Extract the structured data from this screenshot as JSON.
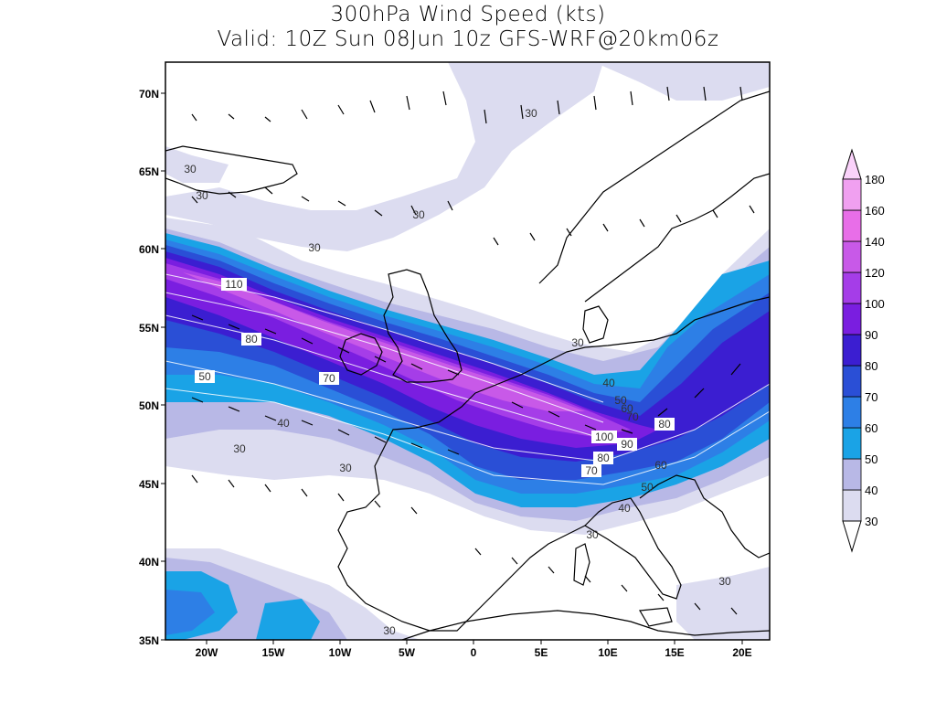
{
  "title": "300hPa Wind Speed (kts)",
  "subtitle": "Valid: 10Z Sun 08Jun 10z GFS-WRF@20km06z",
  "axes": {
    "lat_labels": [
      "70N",
      "65N",
      "60N",
      "55N",
      "50N",
      "45N",
      "40N",
      "35N"
    ],
    "lon_labels": [
      "20W",
      "15W",
      "10W",
      "5W",
      "0",
      "5E",
      "10E",
      "15E",
      "20E"
    ]
  },
  "colorbar": {
    "levels": [
      "30",
      "40",
      "50",
      "60",
      "70",
      "80",
      "90",
      "100",
      "120",
      "140",
      "160",
      "180"
    ],
    "colors": [
      "#dcdcf0",
      "#b8b8e6",
      "#1aa3e6",
      "#2d7fe6",
      "#2a4fd6",
      "#3b1ed1",
      "#7a1ee0",
      "#a53de8",
      "#c859e8",
      "#e86ee8",
      "#f0a0f0",
      "#fad2fa"
    ]
  },
  "contour_labels": [
    "30",
    "30",
    "30",
    "30",
    "30",
    "110",
    "80",
    "50",
    "70",
    "40",
    "30",
    "30",
    "30",
    "40",
    "50",
    "60",
    "70",
    "80",
    "100",
    "90",
    "80",
    "70",
    "60",
    "50",
    "40",
    "30",
    "30",
    "30"
  ],
  "chart_data": {
    "type": "heatmap",
    "title": "300hPa Wind Speed (kts)",
    "subtitle": "Valid: 10Z Sun 08Jun 10z GFS-WRF@20km06z",
    "x_extent": [
      -23,
      22
    ],
    "y_extent": [
      35,
      72
    ],
    "jet_core_max_label": "110",
    "levels": [
      30,
      40,
      50,
      60,
      70,
      80,
      90,
      100,
      120,
      140,
      160,
      180
    ]
  }
}
